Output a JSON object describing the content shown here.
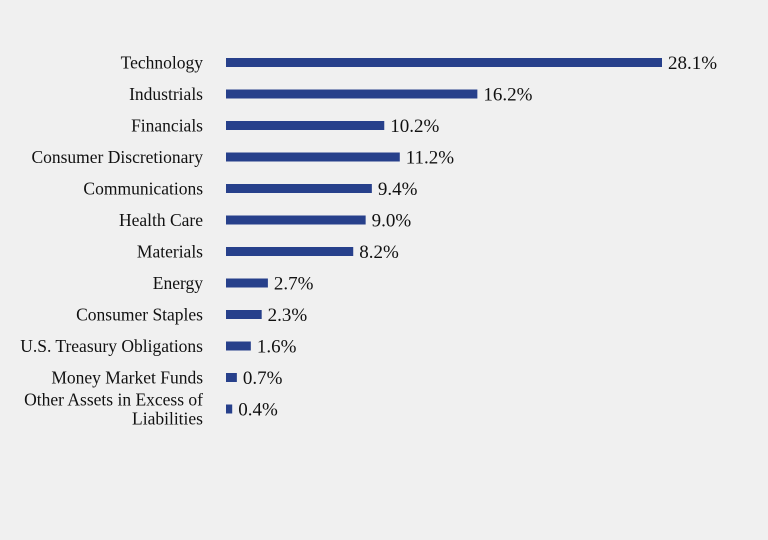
{
  "chart_data": {
    "type": "bar",
    "orientation": "horizontal",
    "categories": [
      "Technology",
      "Industrials",
      "Financials",
      "Consumer Discretionary",
      "Communications",
      "Health Care",
      "Materials",
      "Energy",
      "Consumer Staples",
      "U.S. Treasury Obligations",
      "Money Market Funds",
      "Other Assets in Excess of Liabilities"
    ],
    "category_label_lines": [
      [
        "Technology"
      ],
      [
        "Industrials"
      ],
      [
        "Financials"
      ],
      [
        "Consumer Discretionary"
      ],
      [
        "Communications"
      ],
      [
        "Health Care"
      ],
      [
        "Materials"
      ],
      [
        "Energy"
      ],
      [
        "Consumer Staples"
      ],
      [
        "U.S. Treasury Obligations"
      ],
      [
        "Money Market Funds"
      ],
      [
        "Other Assets in Excess of",
        "Liabilities"
      ]
    ],
    "values": [
      28.1,
      16.2,
      10.2,
      11.2,
      9.4,
      9.0,
      8.2,
      2.7,
      2.3,
      1.6,
      0.7,
      0.4
    ],
    "value_labels": [
      "28.1%",
      "16.2%",
      "10.2%",
      "11.2%",
      "9.4%",
      "9.0%",
      "8.2%",
      "2.7%",
      "2.3%",
      "1.6%",
      "0.7%",
      "0.4%"
    ],
    "title": "",
    "xlabel": "",
    "ylabel": "",
    "unit": "%",
    "xlim": [
      0,
      28.1
    ],
    "grid": false,
    "legend": "none",
    "bar_color": "#27408b",
    "background_color": "#f0f0f0",
    "text_color": "#111111"
  }
}
